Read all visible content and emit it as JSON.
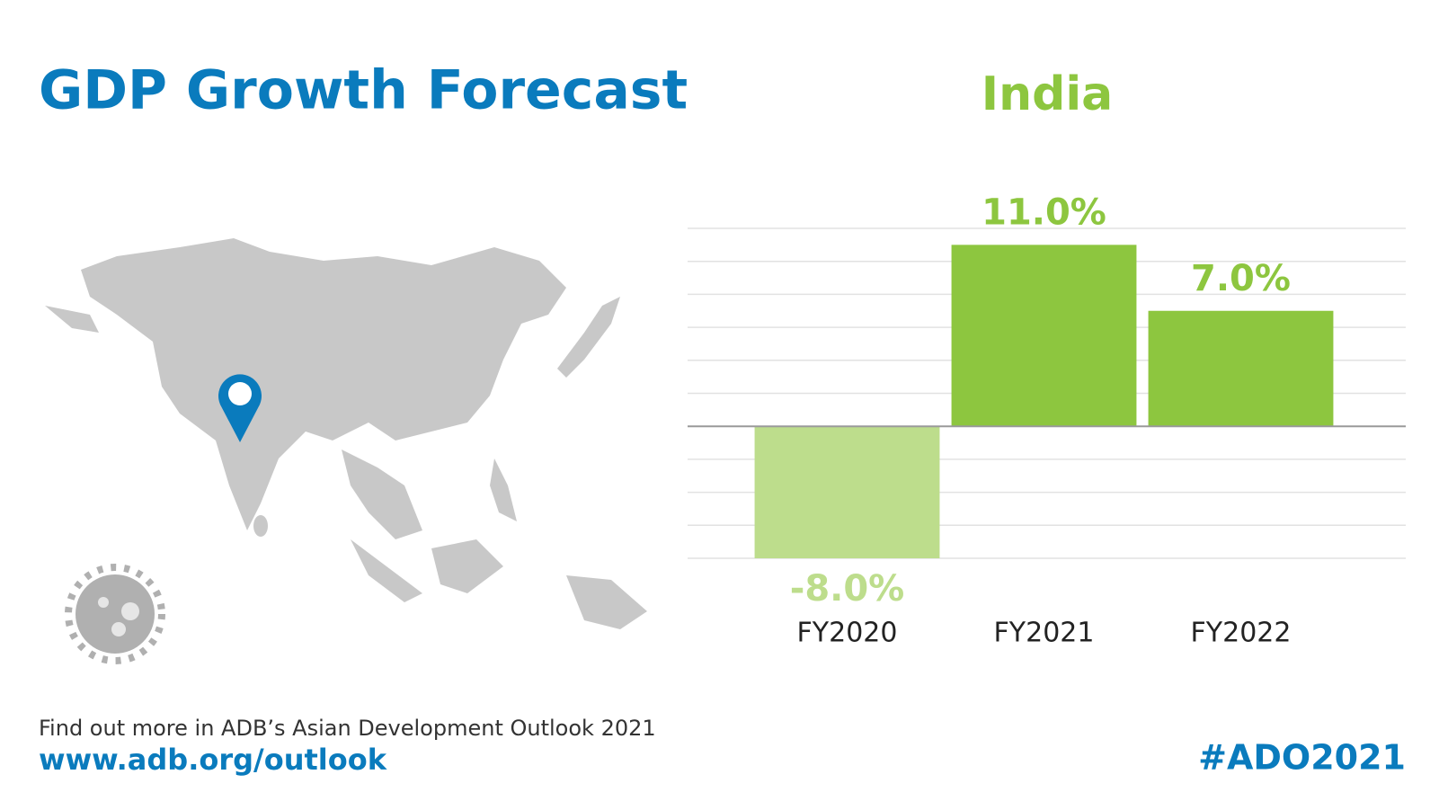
{
  "chart_data": {
    "type": "bar",
    "title": "GDP Growth Forecast",
    "subtitle": "India",
    "categories": [
      "FY2020",
      "FY2021",
      "FY2022"
    ],
    "values": [
      -8.0,
      11.0,
      7.0
    ],
    "value_labels": [
      "-8.0%",
      "11.0%",
      "7.0%"
    ],
    "colors": [
      "#bddd8c",
      "#8dc63f",
      "#8dc63f"
    ],
    "ylim": [
      -8,
      12
    ],
    "yticks": [
      -8,
      -6,
      -4,
      -2,
      0,
      2,
      4,
      6,
      8,
      10,
      12
    ],
    "grid": true
  },
  "footer": {
    "note": "Find out more in ADB’s Asian Development Outlook 2021",
    "url": "www.adb.org/outlook",
    "hashtag": "#ADO2021"
  }
}
